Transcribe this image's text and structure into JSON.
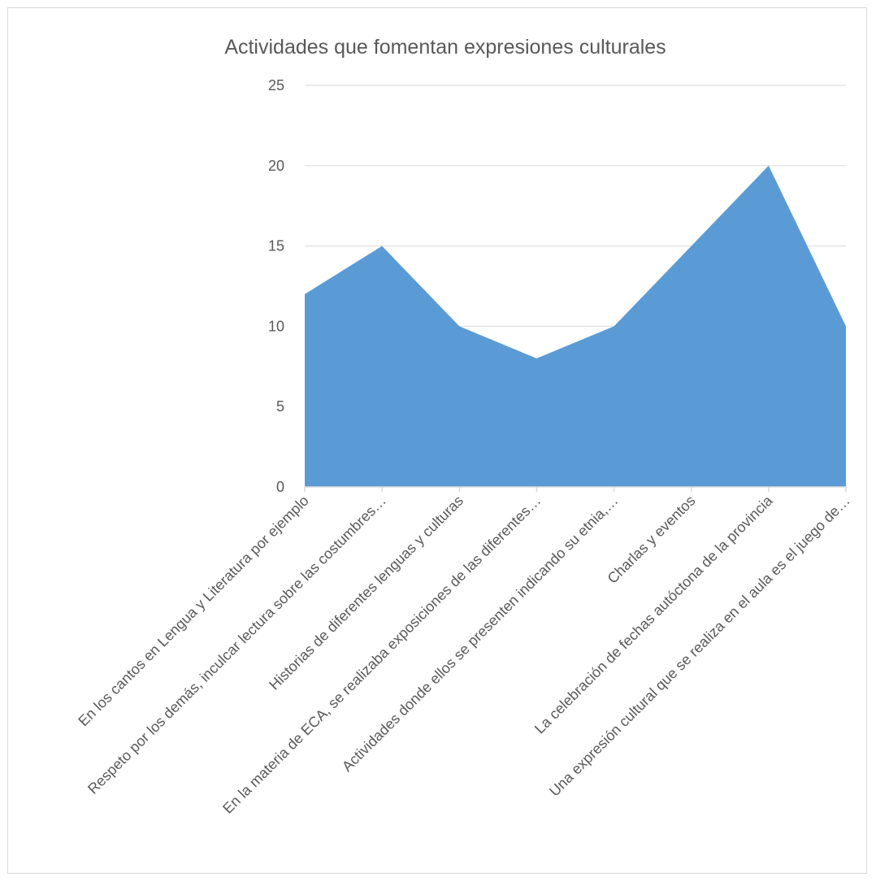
{
  "chart_data": {
    "type": "area",
    "title": "Actividades que fomentan expresiones culturales",
    "xlabel": "",
    "ylabel": "",
    "categories": [
      "En los cantos en Lengua y Literatura por ejemplo",
      "Respeto por los demás, inculcar lectura sobre las costumbres…",
      "Historias de diferentes lenguas y culturas",
      "En la materia de ECA, se realizaba exposiciones de las diferentes…",
      "Actividades donde ellos se presenten indicando su etnia,…",
      "Charlas y eventos",
      "La celebración de fechas autóctona de la provincia",
      "Una expresión cultural que se realiza en el aula es el juego de…"
    ],
    "series": [
      {
        "values": [
          12,
          15,
          10,
          8,
          10,
          15,
          20,
          10
        ],
        "color": "#5b9bd5"
      }
    ],
    "ylim": [
      0,
      25
    ],
    "yticks": [
      0,
      5,
      10,
      15,
      20,
      25
    ],
    "grid": true,
    "legend": "none",
    "colors": {
      "area": "#5b9bd5",
      "grid": "#d9d9d9",
      "text": "#595959",
      "border": "#d9d9d9"
    }
  }
}
